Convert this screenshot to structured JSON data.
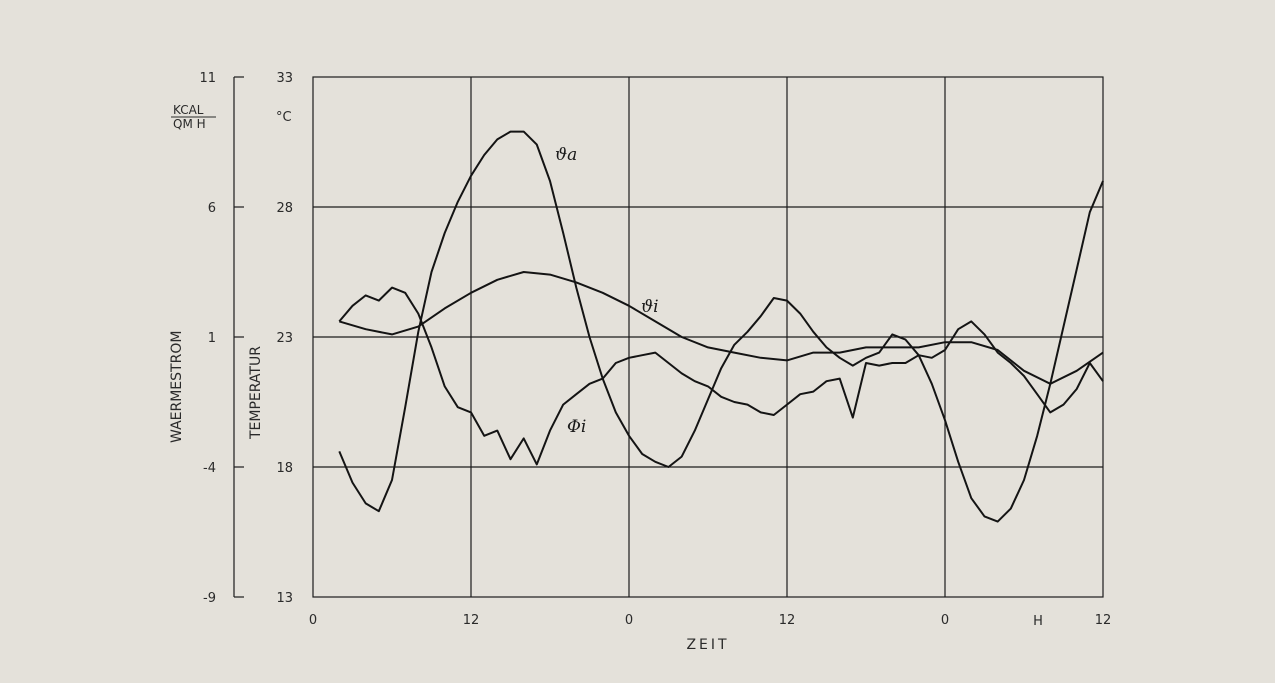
{
  "chart_data": {
    "type": "line",
    "xlabel": "ZEIT",
    "x_unit": "H",
    "x_ticks": [
      "0",
      "12",
      "0",
      "12",
      "0",
      "12"
    ],
    "xlim": [
      0,
      60
    ],
    "left_axis": {
      "label": "WAERMESTROM",
      "unit_top": "KCAL",
      "unit_bottom": "QM H",
      "ylim": [
        -9,
        11
      ],
      "ticks": [
        "11",
        "6",
        "1",
        "-4",
        "-9"
      ]
    },
    "right_axis": {
      "label": "TEMPERATUR",
      "unit": "°C",
      "ylim": [
        13,
        33
      ],
      "ticks": [
        "33",
        "28",
        "23",
        "18",
        "13"
      ]
    },
    "grid": true,
    "series": [
      {
        "name": "ϑa",
        "axis": "temperature",
        "x": [
          2,
          3,
          4,
          5,
          6,
          7,
          8,
          9,
          10,
          11,
          12,
          13,
          14,
          15,
          16,
          17,
          18,
          19,
          20,
          21,
          22,
          23,
          24,
          25,
          26,
          27,
          28,
          29,
          30,
          31,
          32,
          33,
          34,
          35,
          36,
          37,
          38,
          39,
          40,
          41,
          42,
          43,
          44,
          45,
          46,
          47,
          48,
          49,
          50,
          51,
          52,
          53,
          54,
          55,
          56,
          57,
          58,
          59,
          60
        ],
        "y": [
          18.6,
          17.4,
          16.6,
          16.3,
          17.5,
          20.3,
          23.2,
          25.5,
          27.0,
          28.2,
          29.2,
          30.0,
          30.6,
          30.9,
          30.9,
          30.4,
          29.0,
          27.0,
          24.9,
          23.0,
          21.4,
          20.1,
          19.2,
          18.5,
          18.2,
          18.0,
          18.4,
          19.4,
          20.6,
          21.8,
          22.7,
          23.2,
          23.8,
          24.5,
          24.4,
          23.9,
          23.2,
          22.6,
          22.2,
          21.9,
          22.2,
          22.4,
          23.1,
          22.9,
          22.3,
          21.2,
          19.8,
          18.2,
          16.8,
          16.1,
          15.9,
          16.4,
          17.5,
          19.2,
          21.2,
          23.4,
          25.6,
          27.8,
          29.0
        ]
      },
      {
        "name": "ϑi",
        "axis": "temperature",
        "x": [
          2,
          4,
          6,
          8,
          10,
          12,
          14,
          16,
          18,
          20,
          22,
          24,
          26,
          28,
          30,
          32,
          34,
          36,
          38,
          40,
          42,
          44,
          46,
          48,
          50,
          52,
          54,
          56,
          58,
          60
        ],
        "y": [
          23.6,
          23.3,
          23.1,
          23.4,
          24.1,
          24.7,
          25.2,
          25.5,
          25.4,
          25.1,
          24.7,
          24.2,
          23.6,
          23.0,
          22.6,
          22.4,
          22.2,
          22.1,
          22.4,
          22.4,
          22.6,
          22.6,
          22.6,
          22.8,
          22.8,
          22.5,
          21.7,
          21.2,
          21.7,
          22.4
        ]
      },
      {
        "name": "Φi",
        "axis": "heat_flow",
        "x": [
          2,
          3,
          4,
          5,
          6,
          7,
          8,
          9,
          10,
          11,
          12,
          13,
          14,
          15,
          16,
          17,
          18,
          19,
          20,
          21,
          22,
          23,
          24,
          25,
          26,
          27,
          28,
          29,
          30,
          31,
          32,
          33,
          34,
          35,
          36,
          37,
          38,
          39,
          40,
          41,
          42,
          43,
          44,
          45,
          46,
          47,
          48,
          49,
          50,
          51,
          52,
          53,
          54,
          55,
          56,
          57,
          58,
          59,
          60
        ],
        "y": [
          1.6,
          2.2,
          2.6,
          2.4,
          2.9,
          2.7,
          1.9,
          0.6,
          -0.9,
          -1.7,
          -1.9,
          -2.8,
          -2.6,
          -3.7,
          -2.9,
          -3.9,
          -2.6,
          -1.6,
          -1.2,
          -0.8,
          -0.6,
          0.0,
          0.2,
          0.3,
          0.4,
          0.0,
          -0.4,
          -0.7,
          -0.9,
          -1.3,
          -1.5,
          -1.6,
          -1.9,
          -2.0,
          -1.6,
          -1.2,
          -1.1,
          -0.7,
          -0.6,
          -2.1,
          0.0,
          -0.1,
          0.0,
          0.0,
          0.3,
          0.2,
          0.5,
          1.3,
          1.6,
          1.1,
          0.4,
          0.0,
          -0.5,
          -1.2,
          -1.9,
          -1.6,
          -1.0,
          0.0,
          -0.7
        ]
      }
    ]
  }
}
